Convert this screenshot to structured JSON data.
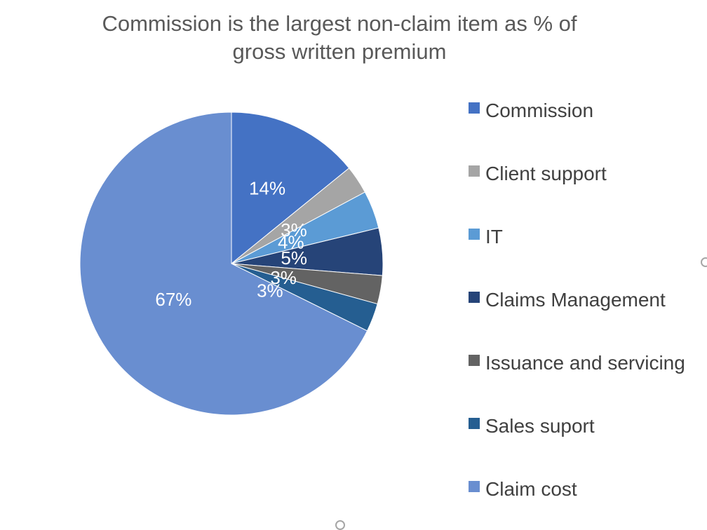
{
  "chart_data": {
    "type": "pie",
    "title_lines": [
      "Commission is the largest non-claim item as % of",
      "gross written premium"
    ],
    "slices": [
      {
        "label": "Commission",
        "value": 14,
        "data_label": "14%",
        "color": "#4472C4"
      },
      {
        "label": "Client support",
        "value": 3,
        "data_label": "3%",
        "color": "#A5A5A5"
      },
      {
        "label": "IT",
        "value": 4,
        "data_label": "4%",
        "color": "#5B9BD5"
      },
      {
        "label": "Claims Management",
        "value": 5,
        "data_label": "5%",
        "color": "#264478"
      },
      {
        "label": "Issuance and servicing",
        "value": 3,
        "data_label": "3%",
        "color": "#636363"
      },
      {
        "label": "Sales suport",
        "value": 3,
        "data_label": "3%",
        "color": "#255E91"
      },
      {
        "label": "Claim cost",
        "value": 67,
        "data_label": "67%",
        "color": "#698ED0"
      }
    ],
    "legend_placement": "right"
  }
}
